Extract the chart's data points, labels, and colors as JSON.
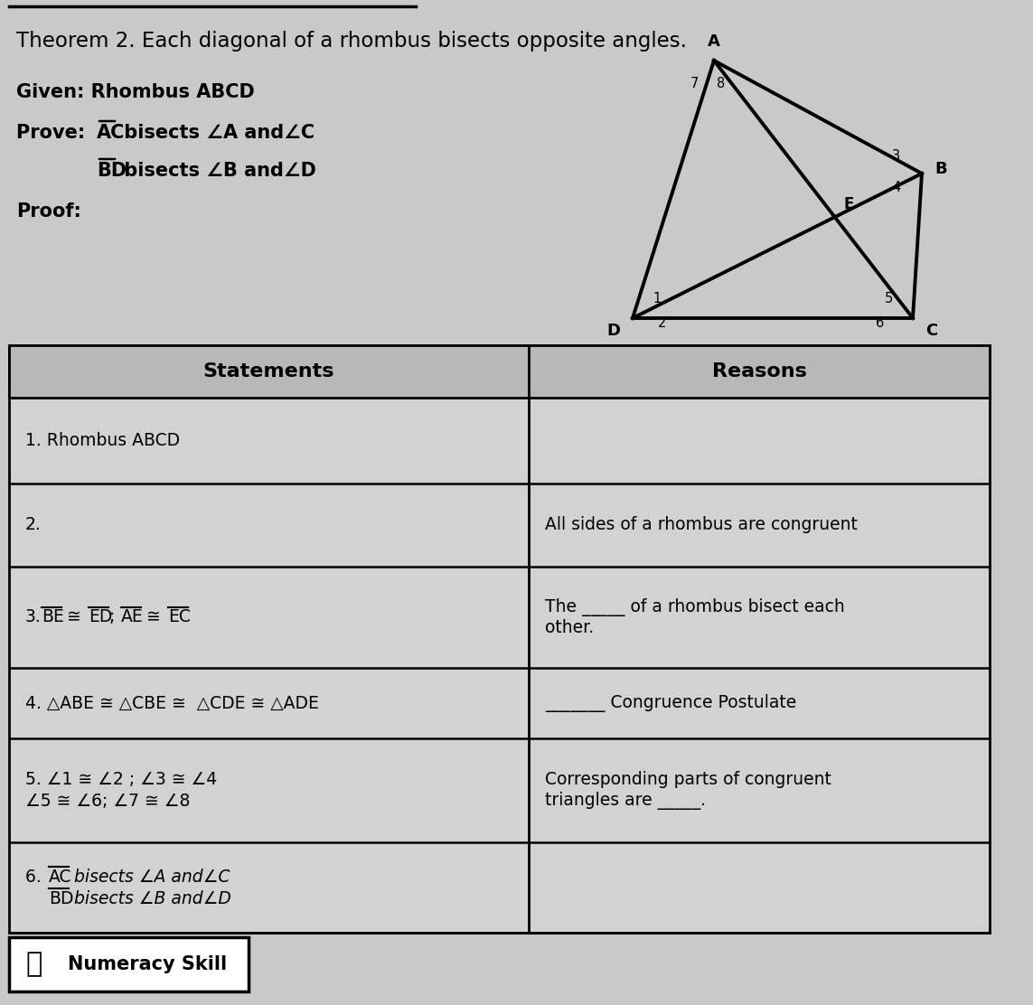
{
  "title": "Theorem 2. Each diagonal of a rhombus bisects opposite angles.",
  "given": "Given: Rhombus ABCD",
  "proof_label": "Proof:",
  "bg_color": "#c9c9c9",
  "statements_header": "Statements",
  "reasons_header": "Reasons",
  "rows": [
    {
      "statement": "1. Rhombus ABCD",
      "reason": ""
    },
    {
      "statement": "2.",
      "reason": "All sides of a rhombus are congruent"
    },
    {
      "statement": "3.BE  ED; AE  EC",
      "reason": "The _____ of a rhombus bisect each\nother."
    },
    {
      "statement": "4. ABE  CBE   CDE  ADE",
      "reason": "_______ Congruence Postulate"
    },
    {
      "statement": "5. 1  2 ; 3  4\n5  6; 7  8",
      "reason": "Corresponding parts of congruent\ntriangles are _____."
    },
    {
      "statement": "6. AC bisects A andC\n    BD bisects B andD",
      "reason": ""
    }
  ],
  "numeracy_skill": "Numeracy Skill"
}
